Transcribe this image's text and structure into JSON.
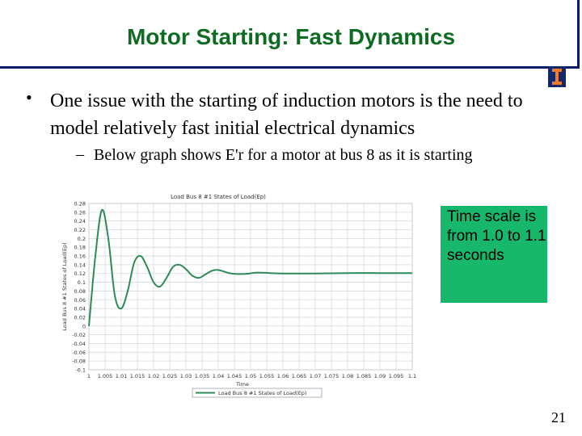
{
  "slide": {
    "title": "Motor Starting: Fast Dynamics",
    "bullet_marker": "•",
    "bullet_1": "One issue with the starting of induction motors is the need to model relatively fast initial electrical dynamics",
    "sub_marker": "–",
    "sub_bullet_1": "Below graph shows E'r for a motor at bus 8 as it is starting",
    "callout": "Time scale is from 1.0 to 1.1 seconds",
    "page_number": "21"
  },
  "colors": {
    "title_green": "#0e6b22",
    "border_blue": "#0b1a6b",
    "callout_green": "#17b86b",
    "series_green": "#2e8b57",
    "logo_orange": "#f07a2a"
  },
  "icons": {
    "logo": "university-i-logo"
  },
  "chart_data": {
    "type": "line",
    "title": "Load Bus 8 #1 States of Load(Ep)",
    "xlabel": "Time",
    "ylabel": "Load Bus 8 #1 States of Load(Ep)",
    "y_ticks": [
      "0.28",
      "0.26",
      "0.24",
      "0.22",
      "0.2",
      "0.18",
      "0.16",
      "0.14",
      "0.12",
      "0.1",
      "0.08",
      "0.06",
      "0.04",
      "0.02",
      "0",
      "-0.02",
      "-0.04",
      "-0.06",
      "-0.08",
      "-0.1"
    ],
    "x_ticks": [
      "1",
      "1.005",
      "1.01",
      "1.015",
      "1.02",
      "1.025",
      "1.03",
      "1.035",
      "1.04",
      "1.045",
      "1.05",
      "1.055",
      "1.06",
      "1.065",
      "1.07",
      "1.075",
      "1.08",
      "1.085",
      "1.09",
      "1.095",
      "1.1"
    ],
    "xlim": [
      1.0,
      1.1
    ],
    "ylim": [
      -0.1,
      0.28
    ],
    "grid": true,
    "legend_position": "bottom",
    "series": [
      {
        "name": "Load Bus 8 #1 States of Load(Ep)",
        "x": [
          1.0,
          1.002,
          1.004,
          1.006,
          1.008,
          1.01,
          1.012,
          1.014,
          1.016,
          1.018,
          1.02,
          1.022,
          1.024,
          1.026,
          1.028,
          1.03,
          1.032,
          1.034,
          1.036,
          1.038,
          1.04,
          1.044,
          1.048,
          1.052,
          1.056,
          1.06,
          1.07,
          1.08,
          1.09,
          1.1
        ],
        "y": [
          0.0,
          0.16,
          0.265,
          0.2,
          0.07,
          0.04,
          0.08,
          0.145,
          0.16,
          0.135,
          0.1,
          0.09,
          0.11,
          0.135,
          0.14,
          0.13,
          0.115,
          0.11,
          0.118,
          0.126,
          0.128,
          0.12,
          0.119,
          0.122,
          0.121,
          0.12,
          0.12,
          0.121,
          0.121,
          0.121
        ]
      }
    ]
  }
}
